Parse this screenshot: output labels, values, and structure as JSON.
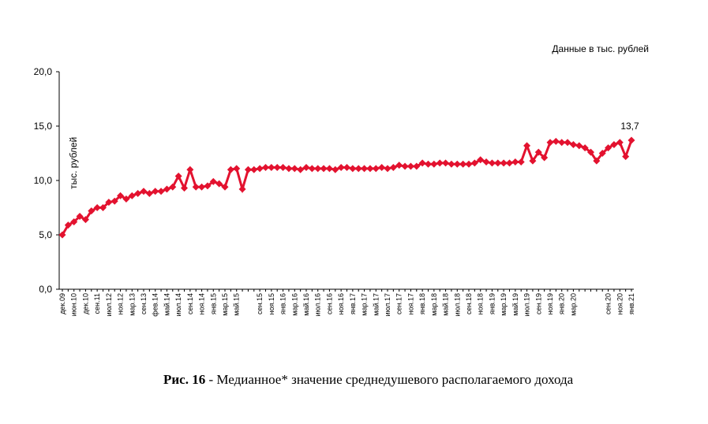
{
  "chart_data": {
    "type": "line",
    "note": "Данные в тыс. рублей",
    "y_label": "тыс. рублей",
    "caption_bold": "Рис. 16",
    "caption": "- Медианное* значение среднедушевого располагаемого дохода",
    "categories": [
      "дек.09",
      null,
      "июн.10",
      null,
      "дек.10",
      null,
      "сен.11",
      null,
      "июл.12",
      null,
      "ноя.12",
      null,
      "мар.13",
      null,
      "сен.13",
      null,
      "фев.14",
      null,
      "май.14",
      null,
      "июл.14",
      null,
      "сен.14",
      null,
      "ноя.14",
      null,
      "янв.15",
      null,
      "мар.15",
      null,
      "май.15",
      null,
      null,
      null,
      "сен.15",
      null,
      "ноя.15",
      null,
      "янв.16",
      null,
      "мар.16",
      null,
      "май.16",
      null,
      "июл.16",
      null,
      "сен.16",
      null,
      "ноя.16",
      null,
      "янв.17",
      null,
      "мар.17",
      null,
      "май.17",
      null,
      "июл.17",
      null,
      "сен.17",
      null,
      "ноя.17",
      null,
      "янв.18",
      null,
      "мар.18",
      null,
      "май.18",
      null,
      "июл.18",
      null,
      "сен.18",
      null,
      "ноя.18",
      null,
      "янв.19",
      null,
      "мар.19",
      null,
      "май.19",
      null,
      "июл.19",
      null,
      "сен.19",
      null,
      "ноя.19",
      null,
      "янв.20",
      null,
      "мар.20",
      null,
      null,
      null,
      null,
      null,
      "сен.20",
      null,
      "ноя.20",
      null,
      "янв.21"
    ],
    "series": [
      {
        "color": "#e3122f",
        "values": [
          5.0,
          5.9,
          6.2,
          6.7,
          6.4,
          7.2,
          7.5,
          7.5,
          8.0,
          8.1,
          8.6,
          8.3,
          8.6,
          8.8,
          9.0,
          8.8,
          9.0,
          9.0,
          9.2,
          9.4,
          10.4,
          9.3,
          11.0,
          9.4,
          9.4,
          9.5,
          9.9,
          9.7,
          9.4,
          11.0,
          11.1,
          9.2,
          11.0,
          11.0,
          11.1,
          11.2,
          11.2,
          11.2,
          11.2,
          11.1,
          11.1,
          11.0,
          11.2,
          11.1,
          11.1,
          11.1,
          11.1,
          11.0,
          11.2,
          11.2,
          11.1,
          11.1,
          11.1,
          11.1,
          11.1,
          11.2,
          11.1,
          11.2,
          11.4,
          11.3,
          11.3,
          11.3,
          11.6,
          11.5,
          11.5,
          11.6,
          11.6,
          11.5,
          11.5,
          11.5,
          11.5,
          11.6,
          11.9,
          11.7,
          11.6,
          11.6,
          11.6,
          11.6,
          11.7,
          11.7,
          13.2,
          11.8,
          12.6,
          12.1,
          13.5,
          13.6,
          13.5,
          13.5,
          13.3,
          13.2,
          13.0,
          12.6,
          11.8,
          12.5,
          13.0,
          13.3,
          13.5,
          12.2,
          13.7
        ],
        "value_labels": [
          null,
          null,
          null,
          null,
          null,
          null,
          null,
          null,
          null,
          null,
          null,
          null,
          null,
          null,
          null,
          null,
          null,
          null,
          null,
          null,
          null,
          null,
          null,
          null,
          null,
          null,
          null,
          null,
          null,
          null,
          null,
          null,
          null,
          null,
          null,
          null,
          null,
          null,
          null,
          null,
          null,
          null,
          null,
          null,
          null,
          null,
          null,
          null,
          null,
          null,
          null,
          null,
          null,
          null,
          null,
          null,
          null,
          null,
          null,
          null,
          null,
          null,
          null,
          null,
          null,
          null,
          null,
          null,
          null,
          null,
          null,
          null,
          null,
          null,
          null,
          null,
          null,
          null,
          null,
          null,
          null,
          null,
          null,
          null,
          null,
          null,
          null,
          null,
          null,
          null,
          null,
          null,
          null,
          null,
          null,
          null,
          null,
          null,
          "13,7"
        ]
      }
    ],
    "ylim": [
      0,
      20
    ],
    "yticks": [
      {
        "value": 0,
        "label": "0,0"
      },
      {
        "value": 5,
        "label": "5,0"
      },
      {
        "value": 10,
        "label": "10,0"
      },
      {
        "value": 15,
        "label": "15,0"
      },
      {
        "value": 20,
        "label": "20,0"
      }
    ]
  }
}
